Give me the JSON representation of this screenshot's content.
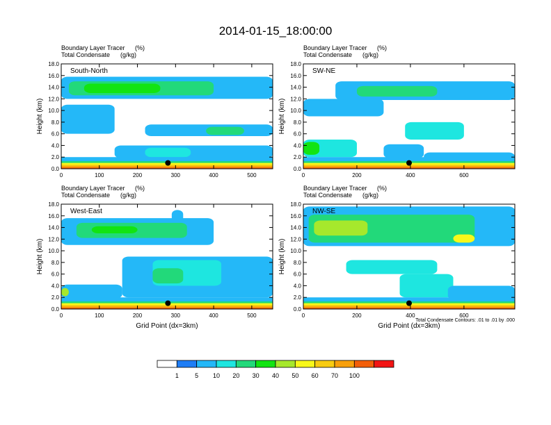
{
  "title": "2014-01-15_18:00:00",
  "chart_data": [
    {
      "type": "heatmap",
      "subtitle_left": [
        "Boundary Layer Tracer",
        "Total Condensate"
      ],
      "subtitle_units": [
        "(%)",
        "(g/kg)"
      ],
      "label": "South-North",
      "ylabel": "Height (km)",
      "xlabel": "",
      "xlim": [
        0,
        555
      ],
      "ylim": [
        0,
        18
      ],
      "xticks": [
        0,
        100,
        200,
        300,
        400,
        500
      ],
      "yticks": [
        "0.0",
        "2.0",
        "4.0",
        "6.0",
        "8.0",
        "10.0",
        "12.0",
        "14.0",
        "16.0",
        "18.0"
      ],
      "marker": {
        "x": 280,
        "y": 1.0
      },
      "layers": [
        {
          "level": 5,
          "x0": 0,
          "x1": 555,
          "y0": 12.0,
          "y1": 15.8
        },
        {
          "level": 20,
          "x0": 20,
          "x1": 400,
          "y0": 12.6,
          "y1": 15.0
        },
        {
          "level": 30,
          "x0": 60,
          "x1": 260,
          "y0": 13.0,
          "y1": 14.6
        },
        {
          "level": 5,
          "x0": 0,
          "x1": 140,
          "y0": 6.0,
          "y1": 11.0
        },
        {
          "level": 5,
          "x0": 220,
          "x1": 555,
          "y0": 5.6,
          "y1": 7.6
        },
        {
          "level": 20,
          "x0": 380,
          "x1": 480,
          "y0": 5.8,
          "y1": 7.2
        },
        {
          "level": 5,
          "x0": 140,
          "x1": 555,
          "y0": 1.8,
          "y1": 4.0
        },
        {
          "level": 10,
          "x0": 220,
          "x1": 340,
          "y0": 2.0,
          "y1": 3.6
        }
      ]
    },
    {
      "type": "heatmap",
      "subtitle_left": [
        "Boundary Layer Tracer",
        "Total Condensate"
      ],
      "subtitle_units": [
        "(%)",
        "(g/kg)"
      ],
      "label": "SW-NE",
      "ylabel": "Height (km)",
      "xlabel": "",
      "xlim": [
        0,
        790
      ],
      "ylim": [
        0,
        18
      ],
      "xticks": [
        0,
        200,
        400,
        600
      ],
      "yticks": [
        "0.0",
        "2.0",
        "4.0",
        "6.0",
        "8.0",
        "10.0",
        "12.0",
        "14.0",
        "16.0",
        "18.0"
      ],
      "marker": {
        "x": 395,
        "y": 1.0
      },
      "layers": [
        {
          "level": 5,
          "x0": 0,
          "x1": 300,
          "y0": 9.0,
          "y1": 12.0
        },
        {
          "level": 5,
          "x0": 120,
          "x1": 790,
          "y0": 11.8,
          "y1": 15.0
        },
        {
          "level": 20,
          "x0": 200,
          "x1": 500,
          "y0": 12.4,
          "y1": 14.2
        },
        {
          "level": 10,
          "x0": 380,
          "x1": 600,
          "y0": 5.0,
          "y1": 8.0
        },
        {
          "level": 10,
          "x0": 0,
          "x1": 200,
          "y0": 2.0,
          "y1": 5.0
        },
        {
          "level": 30,
          "x0": 0,
          "x1": 60,
          "y0": 2.4,
          "y1": 4.6
        },
        {
          "level": 5,
          "x0": 300,
          "x1": 450,
          "y0": 1.8,
          "y1": 4.2
        },
        {
          "level": 5,
          "x0": 450,
          "x1": 790,
          "y0": 1.4,
          "y1": 2.8
        }
      ]
    },
    {
      "type": "heatmap",
      "subtitle_left": [
        "Boundary Layer Tracer",
        "Total Condensate"
      ],
      "subtitle_units": [
        "(%)",
        "(g/kg)"
      ],
      "label": "West-East",
      "ylabel": "Height (km)",
      "xlabel": "Grid Point (dx=3km)",
      "xlim": [
        0,
        555
      ],
      "ylim": [
        0,
        18
      ],
      "xticks": [
        0,
        100,
        200,
        300,
        400,
        500
      ],
      "yticks": [
        "0.0",
        "2.0",
        "4.0",
        "6.0",
        "8.0",
        "10.0",
        "12.0",
        "14.0",
        "16.0",
        "18.0"
      ],
      "marker": {
        "x": 280,
        "y": 1.0
      },
      "layers": [
        {
          "level": 5,
          "x0": 0,
          "x1": 400,
          "y0": 11.0,
          "y1": 15.6
        },
        {
          "level": 20,
          "x0": 40,
          "x1": 330,
          "y0": 12.2,
          "y1": 14.8
        },
        {
          "level": 30,
          "x0": 80,
          "x1": 200,
          "y0": 13.0,
          "y1": 14.2
        },
        {
          "level": 5,
          "x0": 290,
          "x1": 320,
          "y0": 15.0,
          "y1": 17.0
        },
        {
          "level": 5,
          "x0": 160,
          "x1": 555,
          "y0": 2.0,
          "y1": 9.0
        },
        {
          "level": 10,
          "x0": 240,
          "x1": 420,
          "y0": 4.0,
          "y1": 8.4
        },
        {
          "level": 20,
          "x0": 240,
          "x1": 320,
          "y0": 4.4,
          "y1": 7.0
        },
        {
          "level": 5,
          "x0": 0,
          "x1": 160,
          "y0": 1.8,
          "y1": 4.2
        },
        {
          "level": 40,
          "x0": 0,
          "x1": 20,
          "y0": 2.2,
          "y1": 3.6
        }
      ]
    },
    {
      "type": "heatmap",
      "subtitle_left": [
        "Boundary Layer Tracer",
        "Total Condensate"
      ],
      "subtitle_units": [
        "(%)",
        "(g/kg)"
      ],
      "label": "NW-SE",
      "ylabel": "Height (km)",
      "xlabel": "Grid Point (dx=3km)",
      "note": "Total Condensate Contours: .01 to .01 by .000",
      "xlim": [
        0,
        790
      ],
      "ylim": [
        0,
        18
      ],
      "xticks": [
        0,
        200,
        400,
        600
      ],
      "yticks": [
        "0.0",
        "2.0",
        "4.0",
        "6.0",
        "8.0",
        "10.0",
        "12.0",
        "14.0",
        "16.0",
        "18.0"
      ],
      "marker": {
        "x": 395,
        "y": 1.0
      },
      "layers": [
        {
          "level": 5,
          "x0": 0,
          "x1": 790,
          "y0": 10.8,
          "y1": 17.6
        },
        {
          "level": 20,
          "x0": 20,
          "x1": 640,
          "y0": 11.4,
          "y1": 16.2
        },
        {
          "level": 40,
          "x0": 40,
          "x1": 240,
          "y0": 12.6,
          "y1": 15.2
        },
        {
          "level": 50,
          "x0": 560,
          "x1": 640,
          "y0": 11.4,
          "y1": 12.8
        },
        {
          "level": 10,
          "x0": 160,
          "x1": 500,
          "y0": 6.0,
          "y1": 8.4
        },
        {
          "level": 10,
          "x0": 360,
          "x1": 560,
          "y0": 2.0,
          "y1": 6.0
        },
        {
          "level": 5,
          "x0": 540,
          "x1": 790,
          "y0": 1.6,
          "y1": 4.0
        }
      ]
    }
  ],
  "colorbar": {
    "labels": [
      "1",
      "5",
      "10",
      "20",
      "30",
      "40",
      "50",
      "60",
      "70",
      "100"
    ],
    "colors": [
      "#ffffff",
      "#1e7df5",
      "#24b8f8",
      "#1ee6e0",
      "#22d97a",
      "#12e412",
      "#a6e82c",
      "#f8f81a",
      "#f8cc12",
      "#f8a00c",
      "#f25e0a",
      "#f21414"
    ]
  }
}
